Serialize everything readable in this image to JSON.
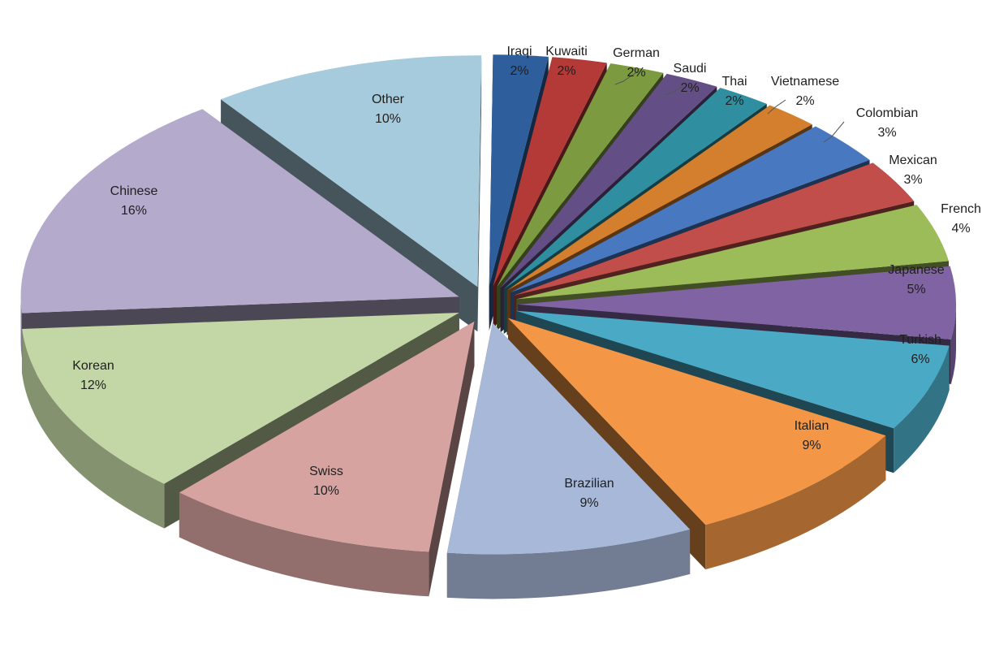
{
  "chart_data": {
    "type": "pie",
    "style": "3d-exploded",
    "legend": "none",
    "slices": [
      {
        "label": "Iraqi",
        "value": 2,
        "pct_label": "2%",
        "color": "#2e5f9c"
      },
      {
        "label": "Kuwaiti",
        "value": 2,
        "pct_label": "2%",
        "color": "#b33a36"
      },
      {
        "label": "German",
        "value": 2,
        "pct_label": "2%",
        "color": "#7c9a40"
      },
      {
        "label": "Saudi",
        "value": 2,
        "pct_label": "2%",
        "color": "#634f85"
      },
      {
        "label": "Thai",
        "value": 2,
        "pct_label": "2%",
        "color": "#2f8ea0"
      },
      {
        "label": "Vietnamese",
        "value": 2,
        "pct_label": "2%",
        "color": "#d47f2d"
      },
      {
        "label": "Colombian",
        "value": 3,
        "pct_label": "3%",
        "color": "#4878c0"
      },
      {
        "label": "Mexican",
        "value": 3,
        "pct_label": "3%",
        "color": "#c14e4a"
      },
      {
        "label": "French",
        "value": 4,
        "pct_label": "4%",
        "color": "#9cbc59"
      },
      {
        "label": "Japanese",
        "value": 5,
        "pct_label": "5%",
        "color": "#7f63a3"
      },
      {
        "label": "Turkish",
        "value": 6,
        "pct_label": "6%",
        "color": "#4aa9c5"
      },
      {
        "label": "Italian",
        "value": 9,
        "pct_label": "9%",
        "color": "#f39646"
      },
      {
        "label": "Brazilian",
        "value": 9,
        "pct_label": "9%",
        "color": "#a7b8d9"
      },
      {
        "label": "Swiss",
        "value": 10,
        "pct_label": "10%",
        "color": "#d7a3a1"
      },
      {
        "label": "Korean",
        "value": 12,
        "pct_label": "12%",
        "color": "#c3d6a5"
      },
      {
        "label": "Chinese",
        "value": 16,
        "pct_label": "16%",
        "color": "#b4aacb"
      },
      {
        "label": "Other",
        "value": 10,
        "pct_label": "10%",
        "color": "#a6cbdc"
      }
    ]
  }
}
